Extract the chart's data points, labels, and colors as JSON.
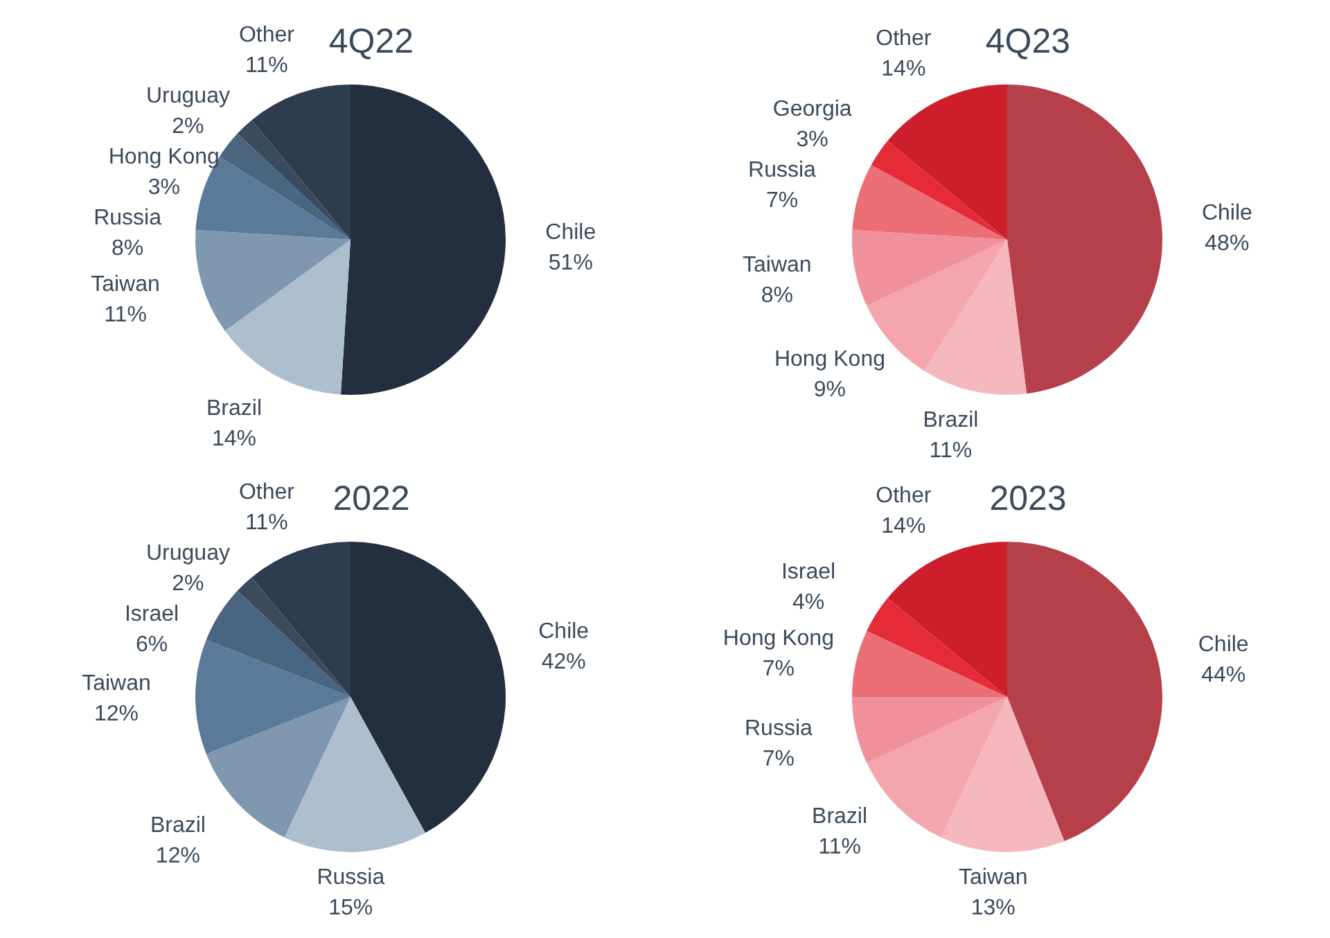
{
  "chart_data": [
    {
      "type": "pie",
      "title": "4Q22",
      "categories": [
        "Chile",
        "Brazil",
        "Taiwan",
        "Russia",
        "Hong Kong",
        "Uruguay",
        "Other"
      ],
      "values": [
        51,
        14,
        11,
        8,
        3,
        2,
        11
      ],
      "value_labels": [
        "51%",
        "14%",
        "11%",
        "8%",
        "3%",
        "2%",
        "11%"
      ],
      "colors": [
        "#232f3e",
        "#adbfcf",
        "#7f98b0",
        "#5b7a9a",
        "#4a6580",
        "#3a4b5e",
        "#2d3d4f"
      ]
    },
    {
      "type": "pie",
      "title": "4Q23",
      "categories": [
        "Chile",
        "Brazil",
        "Hong Kong",
        "Taiwan",
        "Russia",
        "Georgia",
        "Other"
      ],
      "values": [
        48,
        11,
        9,
        8,
        7,
        3,
        14
      ],
      "value_labels": [
        "48%",
        "11%",
        "9%",
        "8%",
        "7%",
        "3%",
        "14%"
      ],
      "colors": [
        "#b5404a",
        "#f5b8be",
        "#f4a6ac",
        "#f0909a",
        "#ec6f78",
        "#e52a38",
        "#cc1f2b"
      ]
    },
    {
      "type": "pie",
      "title": "2022",
      "categories": [
        "Chile",
        "Russia",
        "Brazil",
        "Taiwan",
        "Israel",
        "Uruguay",
        "Other"
      ],
      "values": [
        42,
        15,
        12,
        12,
        6,
        2,
        11
      ],
      "value_labels": [
        "42%",
        "15%",
        "12%",
        "12%",
        "6%",
        "2%",
        "11%"
      ],
      "colors": [
        "#232f3e",
        "#adbfcf",
        "#7f98b0",
        "#5b7a9a",
        "#4a6580",
        "#3a4b5e",
        "#2d3d4f"
      ]
    },
    {
      "type": "pie",
      "title": "2023",
      "categories": [
        "Chile",
        "Taiwan",
        "Brazil",
        "Russia",
        "Hong Kong",
        "Israel",
        "Other"
      ],
      "values": [
        44,
        13,
        11,
        7,
        7,
        4,
        14
      ],
      "value_labels": [
        "44%",
        "13%",
        "11%",
        "7%",
        "7%",
        "4%",
        "14%"
      ],
      "colors": [
        "#b5404a",
        "#f5b8be",
        "#f4a6ac",
        "#f0909a",
        "#ec6f78",
        "#e52a38",
        "#cc1f2b"
      ]
    }
  ]
}
